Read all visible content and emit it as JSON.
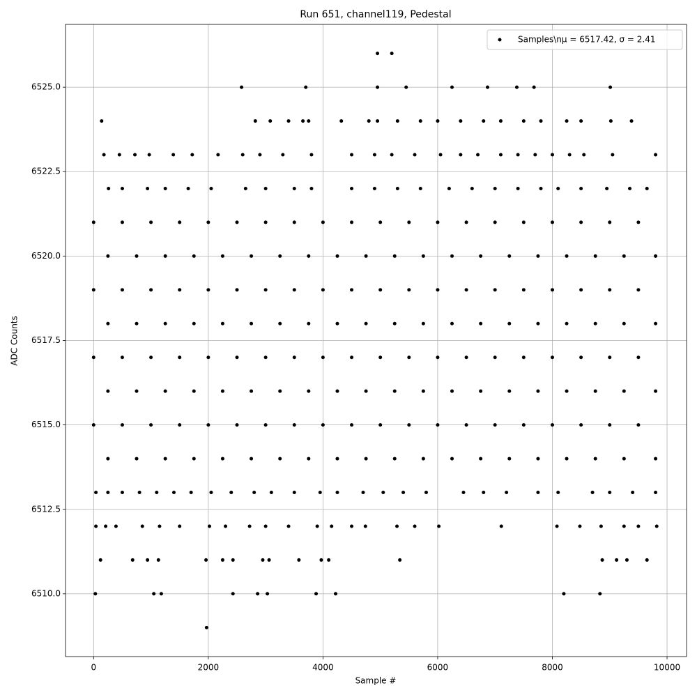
{
  "chart_data": {
    "type": "scatter",
    "title": "Run 651, channel119, Pedestal",
    "xlabel": "Sample #",
    "ylabel": "ADC Counts",
    "xlim": [
      -490,
      10340
    ],
    "ylim": [
      6508.14,
      6526.86
    ],
    "xticks": [
      0,
      2000,
      4000,
      6000,
      8000,
      10000
    ],
    "yticks": [
      {
        "value": 6510,
        "label": "6510.0"
      },
      {
        "value": 6512.5,
        "label": "6512.5"
      },
      {
        "value": 6515,
        "label": "6515.0"
      },
      {
        "value": 6517.5,
        "label": "6517.5"
      },
      {
        "value": 6520,
        "label": "6520.0"
      },
      {
        "value": 6522.5,
        "label": "6522.5"
      },
      {
        "value": 6525,
        "label": "6525.0"
      }
    ],
    "grid": true,
    "legend": "upper right",
    "series": [
      {
        "name": "Samples\\nμ = 6517.42, σ = 2.41",
        "color": "#000000",
        "x": [
          4950,
          5200,
          2580,
          3700,
          4950,
          5450,
          6250,
          6870,
          7380,
          7680,
          9010,
          140,
          2820,
          3080,
          3400,
          3650,
          3750,
          4320,
          4800,
          4950,
          5300,
          5700,
          6000,
          6400,
          6800,
          7100,
          7500,
          7800,
          8250,
          8500,
          9020,
          9380,
          180,
          450,
          720,
          970,
          1390,
          1720,
          2170,
          2600,
          2900,
          3300,
          3800,
          4500,
          4900,
          5200,
          5600,
          6050,
          6400,
          6700,
          7100,
          7400,
          7700,
          8000,
          8300,
          8550,
          9050,
          9800,
          260,
          500,
          940,
          1250,
          1650,
          2050,
          2650,
          3000,
          3500,
          3800,
          4500,
          4900,
          5300,
          5700,
          6200,
          6600,
          7000,
          7400,
          7800,
          8100,
          8500,
          8950,
          9350,
          9650,
          0,
          500,
          1000,
          1500,
          2000,
          2500,
          3000,
          3500,
          4000,
          4500,
          5000,
          5500,
          6000,
          6500,
          7000,
          7500,
          8000,
          8500,
          9000,
          9500,
          250,
          750,
          1250,
          1750,
          2250,
          2750,
          3250,
          3750,
          4250,
          4750,
          5250,
          5750,
          6250,
          6750,
          7250,
          7750,
          8250,
          8750,
          9250,
          9800,
          0,
          500,
          1000,
          1500,
          2000,
          2500,
          3000,
          3500,
          4000,
          4500,
          5000,
          5500,
          6000,
          6500,
          7000,
          7500,
          8000,
          8500,
          9000,
          9500,
          250,
          750,
          1250,
          1750,
          2250,
          2750,
          3250,
          3750,
          4250,
          4750,
          5250,
          5750,
          6250,
          6750,
          7250,
          7750,
          8250,
          8750,
          9250,
          9800,
          0,
          500,
          1000,
          1500,
          2000,
          2500,
          3000,
          3500,
          4000,
          4500,
          5000,
          5500,
          6000,
          6500,
          7000,
          7500,
          8000,
          8500,
          9000,
          9500,
          250,
          750,
          1250,
          1750,
          2250,
          2750,
          3250,
          3750,
          4250,
          4750,
          5250,
          5750,
          6250,
          6750,
          7250,
          7750,
          8250,
          8750,
          9250,
          9800,
          0,
          500,
          1000,
          1500,
          2000,
          2500,
          3000,
          3500,
          4000,
          4500,
          5000,
          5500,
          6000,
          6500,
          7000,
          7500,
          8000,
          8500,
          9000,
          9500,
          250,
          750,
          1250,
          1750,
          2250,
          2750,
          3250,
          3750,
          4250,
          4750,
          5250,
          5750,
          6250,
          6750,
          7250,
          7750,
          8250,
          8750,
          9250,
          9800,
          40,
          250,
          500,
          800,
          1100,
          1400,
          1700,
          2050,
          2400,
          2800,
          3100,
          3500,
          3950,
          4250,
          4700,
          5050,
          5400,
          5800,
          6450,
          6800,
          7200,
          7750,
          8100,
          8700,
          9000,
          9400,
          9800,
          40,
          210,
          390,
          850,
          1150,
          1500,
          2020,
          2300,
          2720,
          3000,
          3400,
          3900,
          4150,
          4500,
          4740,
          5290,
          5600,
          6020,
          7110,
          8080,
          8480,
          8850,
          9250,
          9500,
          9820,
          120,
          680,
          940,
          1130,
          1960,
          2250,
          2430,
          2950,
          3060,
          3580,
          3970,
          4100,
          5340,
          8870,
          9120,
          9300,
          9650,
          30,
          1050,
          1180,
          2430,
          2860,
          3030,
          3880,
          4220,
          8200,
          8830,
          1970
        ],
        "values": [
          6526,
          6526,
          6525,
          6525,
          6525,
          6525,
          6525,
          6525,
          6525,
          6525,
          6525,
          6524,
          6524,
          6524,
          6524,
          6524,
          6524,
          6524,
          6524,
          6524,
          6524,
          6524,
          6524,
          6524,
          6524,
          6524,
          6524,
          6524,
          6524,
          6524,
          6524,
          6524,
          6523,
          6523,
          6523,
          6523,
          6523,
          6523,
          6523,
          6523,
          6523,
          6523,
          6523,
          6523,
          6523,
          6523,
          6523,
          6523,
          6523,
          6523,
          6523,
          6523,
          6523,
          6523,
          6523,
          6523,
          6523,
          6523,
          6522,
          6522,
          6522,
          6522,
          6522,
          6522,
          6522,
          6522,
          6522,
          6522,
          6522,
          6522,
          6522,
          6522,
          6522,
          6522,
          6522,
          6522,
          6522,
          6522,
          6522,
          6522,
          6522,
          6522,
          6521,
          6521,
          6521,
          6521,
          6521,
          6521,
          6521,
          6521,
          6521,
          6521,
          6521,
          6521,
          6521,
          6521,
          6521,
          6521,
          6521,
          6521,
          6521,
          6521,
          6520,
          6520,
          6520,
          6520,
          6520,
          6520,
          6520,
          6520,
          6520,
          6520,
          6520,
          6520,
          6520,
          6520,
          6520,
          6520,
          6520,
          6520,
          6520,
          6520,
          6519,
          6519,
          6519,
          6519,
          6519,
          6519,
          6519,
          6519,
          6519,
          6519,
          6519,
          6519,
          6519,
          6519,
          6519,
          6519,
          6519,
          6519,
          6519,
          6519,
          6518,
          6518,
          6518,
          6518,
          6518,
          6518,
          6518,
          6518,
          6518,
          6518,
          6518,
          6518,
          6518,
          6518,
          6518,
          6518,
          6518,
          6518,
          6518,
          6518,
          6517,
          6517,
          6517,
          6517,
          6517,
          6517,
          6517,
          6517,
          6517,
          6517,
          6517,
          6517,
          6517,
          6517,
          6517,
          6517,
          6517,
          6517,
          6517,
          6517,
          6516,
          6516,
          6516,
          6516,
          6516,
          6516,
          6516,
          6516,
          6516,
          6516,
          6516,
          6516,
          6516,
          6516,
          6516,
          6516,
          6516,
          6516,
          6516,
          6516,
          6515,
          6515,
          6515,
          6515,
          6515,
          6515,
          6515,
          6515,
          6515,
          6515,
          6515,
          6515,
          6515,
          6515,
          6515,
          6515,
          6515,
          6515,
          6515,
          6515,
          6514,
          6514,
          6514,
          6514,
          6514,
          6514,
          6514,
          6514,
          6514,
          6514,
          6514,
          6514,
          6514,
          6514,
          6514,
          6514,
          6514,
          6514,
          6514,
          6514,
          6513,
          6513,
          6513,
          6513,
          6513,
          6513,
          6513,
          6513,
          6513,
          6513,
          6513,
          6513,
          6513,
          6513,
          6513,
          6513,
          6513,
          6513,
          6513,
          6513,
          6513,
          6513,
          6513,
          6513,
          6513,
          6513,
          6513,
          6512,
          6512,
          6512,
          6512,
          6512,
          6512,
          6512,
          6512,
          6512,
          6512,
          6512,
          6512,
          6512,
          6512,
          6512,
          6512,
          6512,
          6512,
          6512,
          6512,
          6512,
          6512,
          6512,
          6512,
          6512,
          6511,
          6511,
          6511,
          6511,
          6511,
          6511,
          6511,
          6511,
          6511,
          6511,
          6511,
          6511,
          6511,
          6511,
          6511,
          6511,
          6511,
          6510,
          6510,
          6510,
          6510,
          6510,
          6510,
          6510,
          6510,
          6510,
          6510,
          6509
        ]
      }
    ]
  }
}
